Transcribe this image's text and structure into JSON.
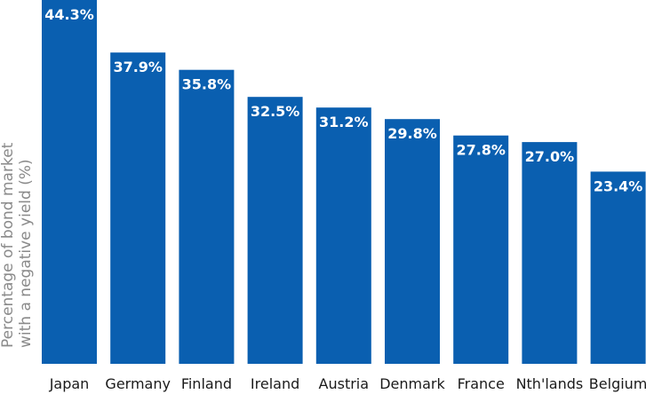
{
  "chart_data": {
    "type": "bar",
    "title": "",
    "xlabel": "",
    "ylabel": [
      "Percentage of bond market",
      "with a negative yield (%)"
    ],
    "categories": [
      "Japan",
      "Germany",
      "Finland",
      "Ireland",
      "Austria",
      "Denmark",
      "France",
      "Nth'lands",
      "Belgium"
    ],
    "values": [
      44.3,
      37.9,
      35.8,
      32.5,
      31.2,
      29.8,
      27.8,
      27.0,
      23.4
    ],
    "value_labels": [
      "44.3%",
      "37.9%",
      "35.8%",
      "32.5%",
      "31.2%",
      "29.8%",
      "27.8%",
      "27.0%",
      "23.4%"
    ],
    "ylim": [
      0,
      44.3
    ],
    "grid": false,
    "legend": "none",
    "bar_color": "#0a5fb0"
  }
}
